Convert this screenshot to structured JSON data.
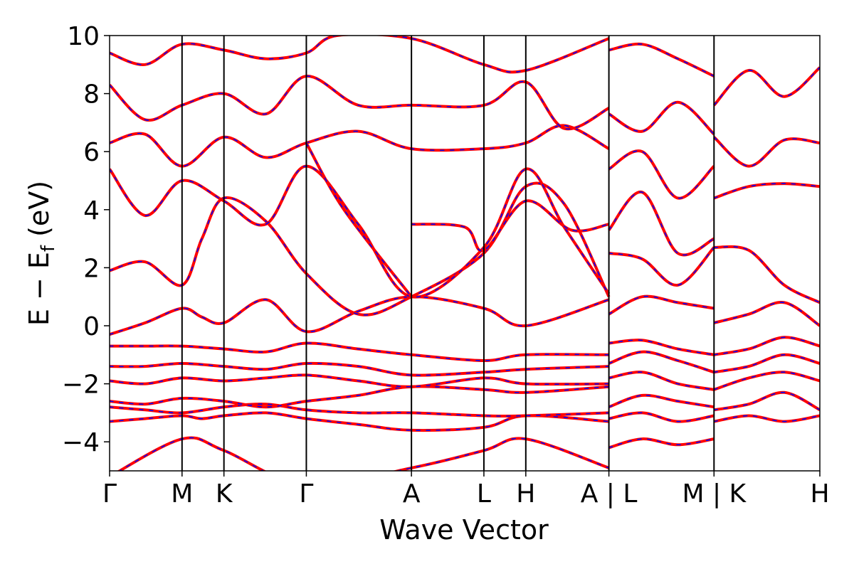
{
  "chart_data": {
    "type": "line",
    "title": "",
    "xlabel": "Wave Vector",
    "ylabel": "E − E_f (eV)",
    "ylabel_main": "E − E",
    "ylabel_sub": "f",
    "ylabel_tail": " (eV)",
    "ylim": [
      -5,
      10
    ],
    "yticks": [
      "−4",
      "−2",
      "0",
      "2",
      "4",
      "6",
      "8",
      "10"
    ],
    "ytick_values": [
      -4,
      -2,
      0,
      2,
      4,
      6,
      8,
      10
    ],
    "xlim": [
      0,
      10
    ],
    "kpoints": [
      {
        "label": "Γ",
        "x": 0.0
      },
      {
        "label": "M",
        "x": 1.02
      },
      {
        "label": "K",
        "x": 1.61
      },
      {
        "label": "Γ",
        "x": 2.77
      },
      {
        "label": "A",
        "x": 4.25
      },
      {
        "label": "L",
        "x": 5.27
      },
      {
        "label": "H",
        "x": 5.86
      },
      {
        "label": "A | L",
        "x": 7.03
      },
      {
        "label": "M | K",
        "x": 8.51
      },
      {
        "label": "H",
        "x": 10.0
      }
    ],
    "grid": false,
    "legend": "none",
    "colors": {
      "band_primary": "#ff0000",
      "band_overlay": "#0000ff",
      "axis": "#000000"
    },
    "series": [
      {
        "x": [
          0,
          1.02,
          1.61,
          2.77,
          4.25,
          5.27,
          5.86,
          7.03
        ],
        "y": [
          -5.2,
          -3.9,
          -4.3,
          -5.5,
          -4.9,
          -4.3,
          -3.9,
          -4.9
        ]
      },
      {
        "x": [
          0,
          0.5,
          1.02,
          1.3,
          1.61,
          2.2,
          2.77,
          3.5,
          4.25,
          5.27,
          5.86,
          7.03
        ],
        "y": [
          -3.3,
          -3.2,
          -3.1,
          -3.2,
          -3.1,
          -3.0,
          -3.2,
          -3.4,
          -3.6,
          -3.5,
          -3.1,
          -3.3
        ]
      },
      {
        "x": [
          0,
          0.5,
          1.02,
          1.61,
          2.2,
          2.77,
          3.5,
          4.25,
          5.27,
          5.86,
          7.03
        ],
        "y": [
          -2.8,
          -2.9,
          -3.0,
          -2.8,
          -2.7,
          -2.9,
          -3.0,
          -3.0,
          -3.1,
          -3.1,
          -3.0
        ]
      },
      {
        "x": [
          0,
          0.5,
          1.02,
          1.61,
          2.2,
          2.77,
          3.5,
          4.25,
          5.27,
          5.86,
          7.03
        ],
        "y": [
          -2.6,
          -2.7,
          -2.5,
          -2.6,
          -2.8,
          -2.6,
          -2.4,
          -2.1,
          -2.2,
          -2.3,
          -2.1
        ]
      },
      {
        "x": [
          0,
          0.5,
          1.02,
          1.61,
          2.2,
          2.77,
          3.5,
          4.25,
          5.27,
          5.86,
          7.03
        ],
        "y": [
          -1.9,
          -2.0,
          -1.8,
          -1.9,
          -1.8,
          -1.7,
          -1.9,
          -2.1,
          -1.8,
          -2.0,
          -2.0
        ]
      },
      {
        "x": [
          0,
          0.5,
          1.02,
          1.61,
          2.2,
          2.77,
          3.5,
          4.25,
          5.27,
          5.86,
          7.03
        ],
        "y": [
          -1.4,
          -1.4,
          -1.3,
          -1.4,
          -1.5,
          -1.3,
          -1.4,
          -1.7,
          -1.6,
          -1.5,
          -1.4
        ]
      },
      {
        "x": [
          0,
          0.5,
          1.02,
          1.61,
          2.2,
          2.77,
          3.5,
          4.25,
          5.27,
          5.86,
          7.03
        ],
        "y": [
          -0.7,
          -0.7,
          -0.7,
          -0.8,
          -0.9,
          -0.6,
          -0.8,
          -1.0,
          -1.2,
          -1.0,
          -1.0
        ]
      },
      {
        "x": [
          0,
          0.5,
          1.02,
          1.3,
          1.61,
          2.2,
          2.77,
          3.5,
          4.25,
          5.27,
          5.86,
          7.03
        ],
        "y": [
          -0.3,
          0.1,
          0.6,
          0.3,
          0.1,
          0.9,
          -0.2,
          0.5,
          1.0,
          0.6,
          0.0,
          0.9
        ]
      },
      {
        "x": [
          0,
          0.5,
          1.02,
          1.3,
          1.61,
          2.2,
          2.77,
          3.5,
          4.25,
          5.27,
          5.86,
          6.4,
          7.03
        ],
        "y": [
          1.9,
          2.2,
          1.4,
          3.0,
          4.4,
          3.6,
          1.8,
          0.4,
          1.0,
          2.5,
          4.8,
          4.2,
          1.0
        ]
      },
      {
        "x": [
          0,
          0.5,
          1.02,
          1.61,
          2.2,
          2.77,
          3.5,
          4.25,
          5.27,
          5.86,
          6.4,
          7.03
        ],
        "y": [
          5.4,
          3.8,
          5.0,
          4.3,
          3.5,
          5.5,
          3.5,
          1.0,
          2.7,
          5.4,
          3.4,
          1.1
        ]
      },
      {
        "x": [
          0,
          0.5,
          1.02,
          1.61,
          2.2,
          2.77,
          3.5,
          4.25,
          5.27,
          5.86,
          6.4,
          7.03
        ],
        "y": [
          6.3,
          6.6,
          5.5,
          6.5,
          5.8,
          6.3,
          6.7,
          6.1,
          6.1,
          6.3,
          6.9,
          6.1
        ]
      },
      {
        "x": [
          0,
          0.5,
          1.02,
          1.61,
          2.2,
          2.77,
          3.5,
          4.25,
          5.27,
          5.86,
          6.4,
          7.03
        ],
        "y": [
          8.3,
          7.1,
          7.6,
          8.0,
          7.3,
          8.6,
          7.6,
          7.6,
          7.6,
          8.4,
          6.8,
          7.5
        ]
      },
      {
        "x": [
          0,
          0.5,
          1.02,
          1.61,
          2.2,
          2.77,
          3.2,
          4.25,
          5.27,
          5.86,
          7.03
        ],
        "y": [
          9.4,
          9.0,
          9.7,
          9.5,
          9.2,
          9.4,
          10.0,
          9.9,
          9.0,
          8.8,
          9.9
        ]
      },
      {
        "x": [
          2.77,
          3.3,
          4.25
        ],
        "y": [
          6.3,
          4.0,
          1.0
        ]
      },
      {
        "x": [
          4.25,
          5.0,
          5.27,
          5.86,
          6.5,
          7.03
        ],
        "y": [
          3.5,
          3.4,
          2.6,
          4.3,
          3.3,
          3.5
        ]
      },
      {
        "x": [
          7.03,
          7.5,
          8.0,
          8.51
        ],
        "y": [
          -4.2,
          -3.9,
          -4.1,
          -3.9
        ]
      },
      {
        "x": [
          7.03,
          7.5,
          8.0,
          8.51
        ],
        "y": [
          -3.2,
          -3.0,
          -3.3,
          -3.1
        ]
      },
      {
        "x": [
          7.03,
          7.5,
          8.0,
          8.51
        ],
        "y": [
          -2.8,
          -2.4,
          -2.6,
          -2.8
        ]
      },
      {
        "x": [
          7.03,
          7.5,
          8.0,
          8.51
        ],
        "y": [
          -1.8,
          -1.6,
          -2.0,
          -2.2
        ]
      },
      {
        "x": [
          7.03,
          7.5,
          8.0,
          8.51
        ],
        "y": [
          -1.3,
          -0.9,
          -1.2,
          -1.6
        ]
      },
      {
        "x": [
          7.03,
          7.5,
          8.0,
          8.51
        ],
        "y": [
          -0.6,
          -0.5,
          -0.8,
          -1.0
        ]
      },
      {
        "x": [
          7.03,
          7.5,
          8.0,
          8.51
        ],
        "y": [
          0.4,
          1.0,
          0.8,
          0.6
        ]
      },
      {
        "x": [
          7.03,
          7.5,
          8.0,
          8.51
        ],
        "y": [
          2.5,
          2.3,
          1.4,
          2.7
        ]
      },
      {
        "x": [
          7.03,
          7.5,
          8.0,
          8.51
        ],
        "y": [
          3.3,
          4.6,
          2.5,
          3.0
        ]
      },
      {
        "x": [
          7.03,
          7.5,
          8.0,
          8.51
        ],
        "y": [
          5.4,
          6.0,
          4.4,
          5.5
        ]
      },
      {
        "x": [
          7.03,
          7.5,
          8.0,
          8.51
        ],
        "y": [
          7.3,
          6.7,
          7.7,
          6.6
        ]
      },
      {
        "x": [
          7.03,
          7.5,
          8.0,
          8.51
        ],
        "y": [
          9.5,
          9.7,
          9.2,
          8.6
        ]
      },
      {
        "x": [
          8.51,
          9.0,
          9.5,
          10.0
        ],
        "y": [
          -3.3,
          -3.1,
          -3.3,
          -3.1
        ]
      },
      {
        "x": [
          8.51,
          9.0,
          9.5,
          10.0
        ],
        "y": [
          -2.9,
          -2.7,
          -2.3,
          -2.9
        ]
      },
      {
        "x": [
          8.51,
          9.0,
          9.5,
          10.0
        ],
        "y": [
          -2.2,
          -1.8,
          -1.6,
          -1.9
        ]
      },
      {
        "x": [
          8.51,
          9.0,
          9.5,
          10.0
        ],
        "y": [
          -1.6,
          -1.4,
          -1.0,
          -1.3
        ]
      },
      {
        "x": [
          8.51,
          9.0,
          9.5,
          10.0
        ],
        "y": [
          -1.0,
          -0.8,
          -0.4,
          -0.7
        ]
      },
      {
        "x": [
          8.51,
          9.0,
          9.5,
          10.0
        ],
        "y": [
          0.1,
          0.4,
          0.8,
          0.0
        ]
      },
      {
        "x": [
          8.51,
          9.0,
          9.5,
          10.0
        ],
        "y": [
          2.7,
          2.6,
          1.4,
          0.8
        ]
      },
      {
        "x": [
          8.51,
          9.0,
          9.5,
          10.0
        ],
        "y": [
          4.4,
          4.8,
          4.9,
          4.8
        ]
      },
      {
        "x": [
          8.51,
          9.0,
          9.5,
          10.0
        ],
        "y": [
          6.5,
          5.5,
          6.4,
          6.3
        ]
      },
      {
        "x": [
          8.51,
          9.0,
          9.5,
          10.0
        ],
        "y": [
          7.6,
          8.8,
          7.9,
          8.9
        ]
      }
    ]
  }
}
